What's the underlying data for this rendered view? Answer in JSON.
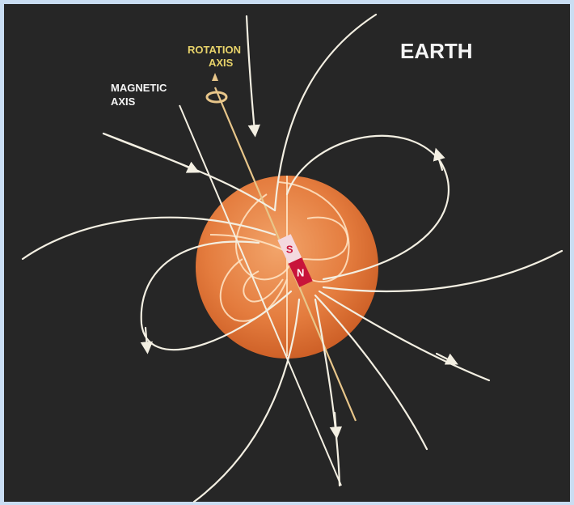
{
  "title": "EARTH",
  "labels": {
    "rotation_axis": {
      "line1": "ROTATION",
      "line2": "AXIS"
    },
    "magnetic_axis": {
      "line1": "MAGNETIC",
      "line2": "AXIS"
    }
  },
  "magnet": {
    "south": "S",
    "north": "N"
  }
}
